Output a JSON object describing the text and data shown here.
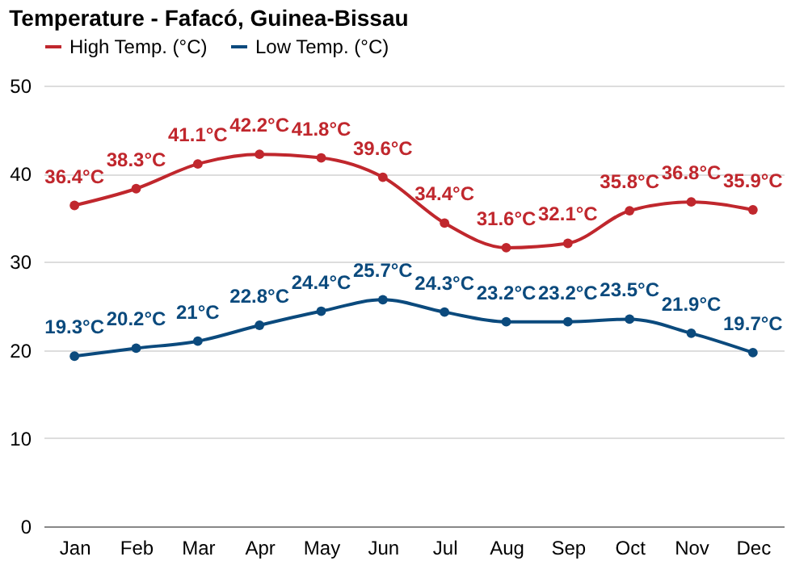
{
  "chart_data": {
    "type": "line",
    "title": "Temperature - Fafacó, Guinea-Bissau",
    "categories": [
      "Jan",
      "Feb",
      "Mar",
      "Apr",
      "May",
      "Jun",
      "Jul",
      "Aug",
      "Sep",
      "Oct",
      "Nov",
      "Dec"
    ],
    "series": [
      {
        "name": "High Temp. (°C)",
        "color": "#c0272d",
        "values": [
          36.4,
          38.3,
          41.1,
          42.2,
          41.8,
          39.6,
          34.4,
          31.6,
          32.1,
          35.8,
          36.8,
          35.9
        ],
        "value_labels": [
          "36.4°C",
          "38.3°C",
          "41.1°C",
          "42.2°C",
          "41.8°C",
          "39.6°C",
          "34.4°C",
          "31.6°C",
          "32.1°C",
          "35.8°C",
          "36.8°C",
          "35.9°C"
        ]
      },
      {
        "name": "Low Temp. (°C)",
        "color": "#0b4a7d",
        "values": [
          19.3,
          20.2,
          21,
          22.8,
          24.4,
          25.7,
          24.3,
          23.2,
          23.2,
          23.5,
          21.9,
          19.7
        ],
        "value_labels": [
          "19.3°C",
          "20.2°C",
          "21°C",
          "22.8°C",
          "24.4°C",
          "25.7°C",
          "24.3°C",
          "23.2°C",
          "23.2°C",
          "23.5°C",
          "21.9°C",
          "19.7°C"
        ]
      }
    ],
    "ylim": [
      0,
      50
    ],
    "yticks": [
      0,
      10,
      20,
      30,
      40,
      50
    ],
    "grid": "y",
    "legend": "top left",
    "marker": "circle",
    "line_style": "solid"
  }
}
